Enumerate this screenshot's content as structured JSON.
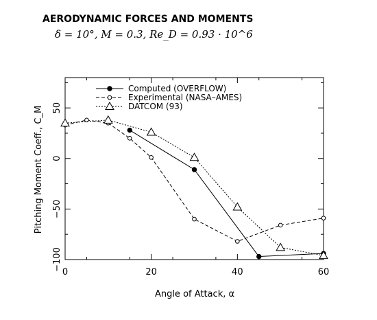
{
  "header": {
    "title": "AERODYNAMIC FORCES AND MOMENTS",
    "subtitle": "δ = 10°,   M = 0.3,   Re_D = 0.93 · 10^6"
  },
  "chart_data": {
    "type": "line",
    "title": "AERODYNAMIC FORCES AND MOMENTS",
    "xlabel": "Angle of Attack, α",
    "ylabel": "Pitching Moment Coeff., C_M",
    "xlim": [
      0,
      60
    ],
    "ylim": [
      -100,
      80
    ],
    "xticks": [
      0,
      20,
      40,
      60
    ],
    "yticks": [
      -100,
      -50,
      0,
      50
    ],
    "xtick_labels": [
      "0",
      "20",
      "40",
      "60"
    ],
    "ytick_labels": [
      "−100",
      "−50",
      "0",
      "50"
    ],
    "grid": false,
    "legend_position": "top-left",
    "series": [
      {
        "name": "Computed (OVERFLOW)",
        "style": "solid",
        "marker": "filled-circle",
        "color": "#000000",
        "x": [
          15,
          30,
          45,
          60
        ],
        "y": [
          28,
          -11,
          -97,
          -94
        ]
      },
      {
        "name": "Experimental (NASA–AMES)",
        "style": "dashed",
        "marker": "open-circle",
        "color": "#000000",
        "x": [
          0,
          5,
          10,
          15,
          20,
          30,
          40,
          50,
          60
        ],
        "y": [
          33,
          38,
          35,
          20,
          1,
          -60,
          -82,
          -66,
          -59
        ]
      },
      {
        "name": "DATCOM (93)",
        "style": "dotted",
        "marker": "open-triangle",
        "color": "#000000",
        "x": [
          0,
          10,
          20,
          30,
          40,
          50,
          60
        ],
        "y": [
          35,
          38,
          26,
          1,
          -48,
          -88,
          -96
        ]
      }
    ]
  }
}
